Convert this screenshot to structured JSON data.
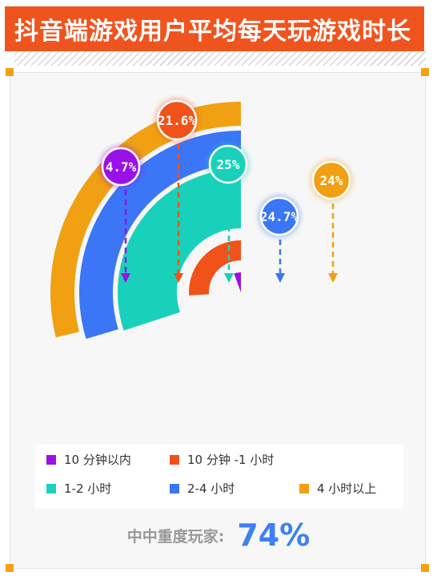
{
  "title": "抖音端游戏用户平均每天玩游戏时长",
  "colors": {
    "accent": "#f0541e",
    "corner": "#f2a114",
    "summary_value": "#3f7ff5"
  },
  "chart_data": {
    "type": "radial-bar",
    "title": "抖音端游戏用户平均每天玩游戏时长",
    "unit": "%",
    "series": [
      {
        "name": "10 分钟以内",
        "value": 4.7,
        "label": "4.7%",
        "color": "#9a10e8"
      },
      {
        "name": "10 分钟 -1 小时",
        "value": 21.6,
        "label": "21.6%",
        "color": "#f1521a"
      },
      {
        "name": "1-2 小时",
        "value": 25,
        "label": "25%",
        "color": "#19d1ba"
      },
      {
        "name": "2-4 小时",
        "value": 24.7,
        "label": "24.7%",
        "color": "#3a76f6"
      },
      {
        "name": "4 小时以上",
        "value": 24,
        "label": "24%",
        "color": "#f0a012"
      }
    ],
    "legend_position": "bottom"
  },
  "summary": {
    "label": "中中重度玩家:",
    "value": "74%"
  }
}
